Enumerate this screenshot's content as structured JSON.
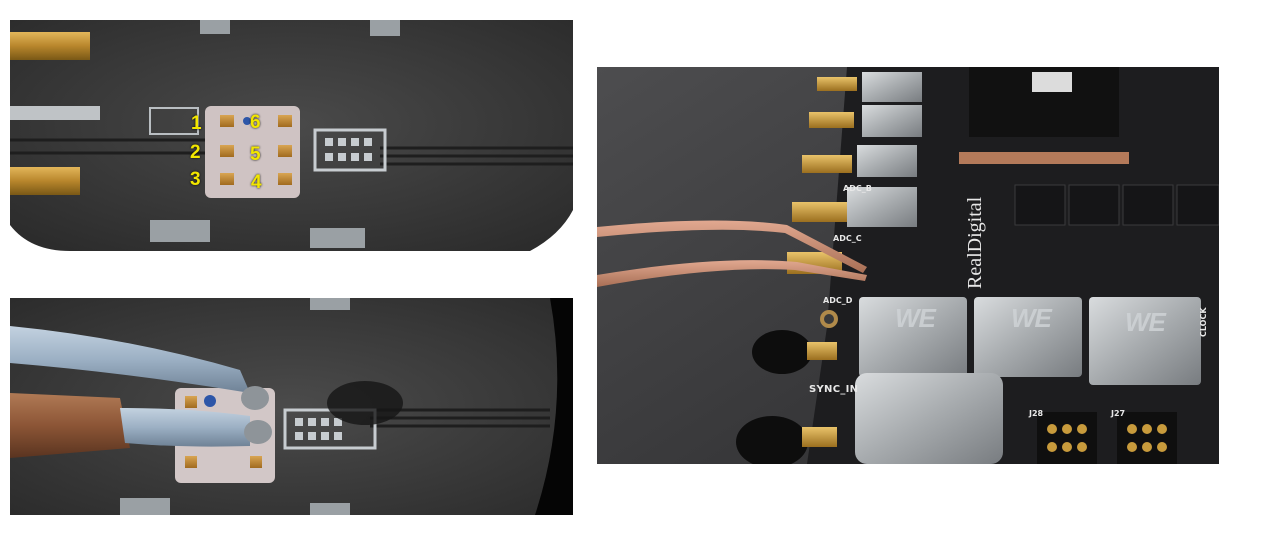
{
  "photos": {
    "top_left": {
      "pin_labels": [
        "1",
        "2",
        "3",
        "4",
        "5",
        "6"
      ]
    },
    "right": {
      "silkscreen": {
        "adc_d": "ADC_D",
        "adc_c": "ADC_C",
        "adc_b": "ADC_B",
        "sync_in": "SYNC_IN",
        "brand": "RealDigital",
        "j28": "J28",
        "j27": "J27",
        "clock": "CLOCK",
        "we1": "WE",
        "we2": "WE",
        "we3": "WE"
      }
    }
  }
}
